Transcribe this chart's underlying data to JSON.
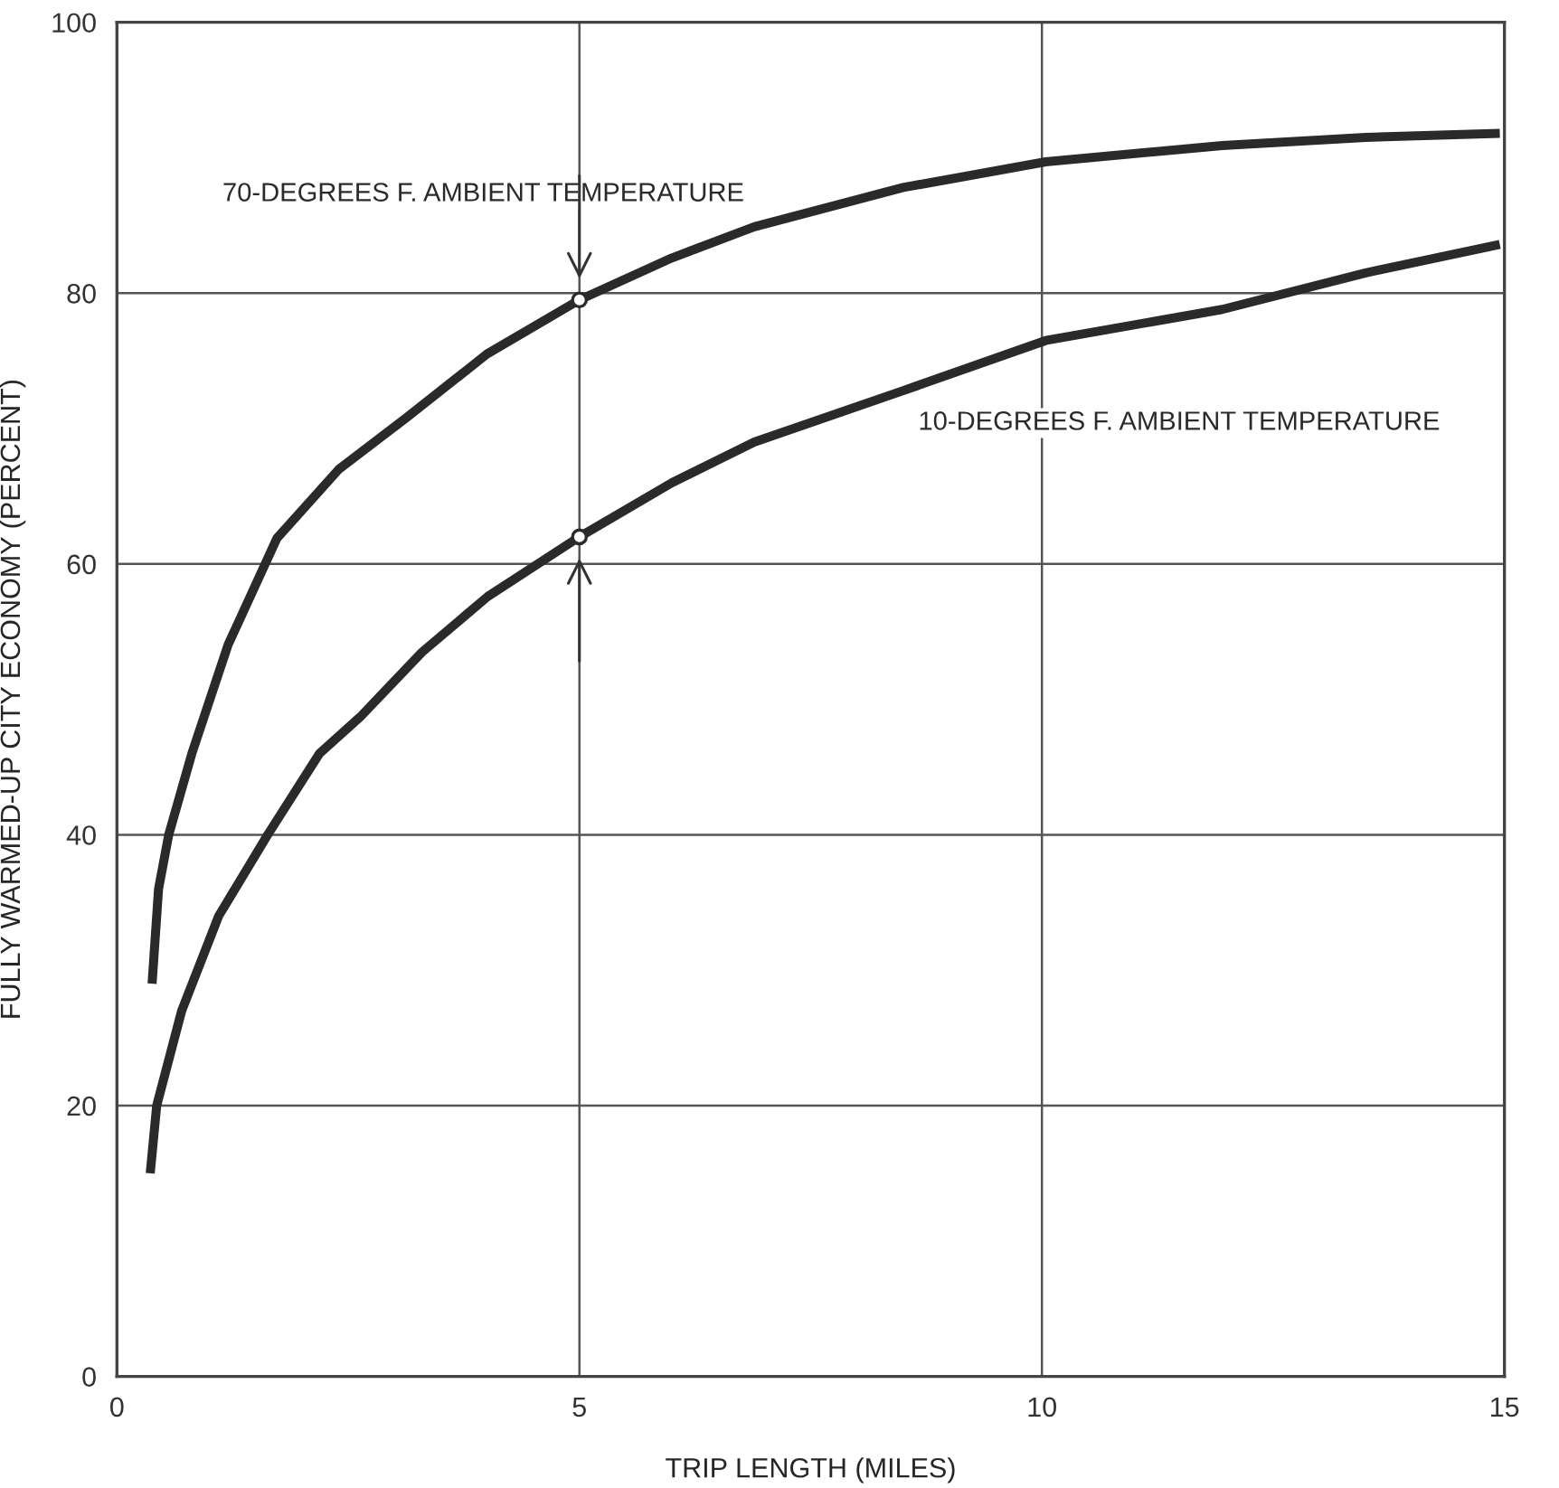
{
  "chart_data": {
    "type": "line",
    "xlabel": "TRIP LENGTH (MILES)",
    "ylabel": "FULLY WARMED-UP CITY ECONOMY (PERCENT)",
    "xlim": [
      0,
      15
    ],
    "xticks": [
      0,
      5,
      10,
      15
    ],
    "ylim": [
      0,
      100
    ],
    "yticks": [
      0,
      20,
      40,
      60,
      80,
      100
    ],
    "grid": true,
    "marker": "none",
    "line_style": "solid",
    "series": [
      {
        "name": "70-DEGREES F. AMBIENT TEMPERATURE",
        "color": "#2a2a2a",
        "x": [
          0.38,
          0.45,
          0.56,
          0.81,
          1.2,
          1.73,
          2.4,
          3.13,
          4.0,
          5.0,
          6.0,
          6.89,
          8.5,
          10.04,
          11.95,
          13.5,
          14.95
        ],
        "values": [
          29,
          36,
          40,
          46,
          54,
          61.9,
          67,
          70.8,
          75.5,
          79.5,
          82.6,
          84.9,
          87.8,
          89.7,
          90.9,
          91.5,
          91.8
        ]
      },
      {
        "name": "10-DEGREES F. AMBIENT TEMPERATURE",
        "color": "#2a2a2a",
        "x": [
          0.36,
          0.43,
          0.7,
          1.1,
          1.63,
          2.19,
          2.63,
          3.3,
          4.01,
          5.0,
          6.0,
          6.89,
          8.5,
          10.04,
          11.95,
          13.5,
          14.95
        ],
        "values": [
          15,
          20,
          27,
          34,
          40,
          46.0,
          48.7,
          53.5,
          57.6,
          62,
          66,
          69.0,
          72.8,
          76.5,
          78.8,
          81.5,
          83.6
        ]
      },
      {
        "type": "scatter",
        "marker": "circle",
        "color": "#2a2a2a",
        "x": [
          5.0,
          5.0
        ],
        "values": [
          79.5,
          62
        ]
      }
    ]
  }
}
